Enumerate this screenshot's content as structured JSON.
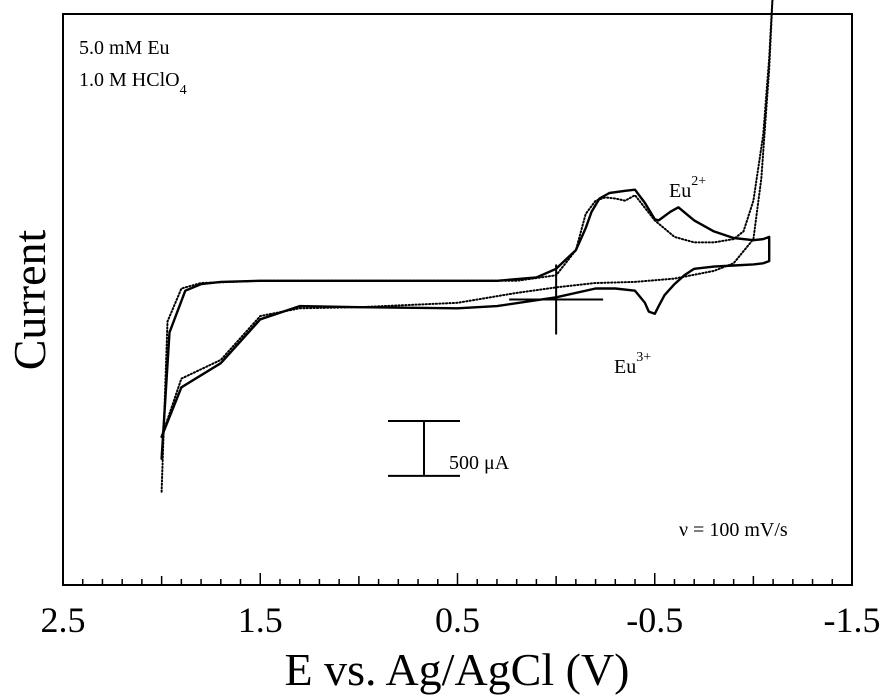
{
  "chart_data": {
    "type": "line",
    "title": "",
    "xlabel": "E vs. Ag/AgCl (V)",
    "ylabel": "Current",
    "x_reversed": true,
    "xlim": [
      2.5,
      -1.5
    ],
    "ylim": [
      -2.6,
      2.6
    ],
    "y_unit": "mA",
    "xticks": [
      "2.5",
      "1.5",
      "0.5",
      "-0.5",
      "-1.5"
    ],
    "xtick_values": [
      2.5,
      1.5,
      0.5,
      -0.5,
      -1.5
    ],
    "minor_tick_step": 0.1,
    "grid": false,
    "legend": "none",
    "annotations": {
      "conc_line1": "5.0 mM Eu",
      "conc_line2_main": "1.0 M HClO",
      "conc_line2_sub": "4",
      "eu2_main": "Eu",
      "eu2_sup": "2+",
      "eu3_main": "Eu",
      "eu3_sup": "3+",
      "scale_bar_label": "500 μA",
      "scale_bar_value_mA": 0.5,
      "scan_rate": "ν = 100 mV/s"
    },
    "series": [
      {
        "style": "solid",
        "x": [
          2.0,
          1.96,
          1.88,
          1.8,
          1.7,
          1.5,
          1.2,
          1.0,
          0.5,
          0.3,
          0.1,
          0.0,
          -0.1,
          -0.15,
          -0.18,
          -0.22,
          -0.27,
          -0.35,
          -0.4,
          -0.45,
          -0.5,
          -0.52,
          -0.58,
          -0.62,
          -0.7,
          -0.8,
          -0.9,
          -1.0,
          -1.05,
          -1.08,
          -1.08,
          -1.05,
          -1.0,
          -0.9,
          -0.8,
          -0.7,
          -0.65,
          -0.6,
          -0.55,
          -0.52,
          -0.5,
          -0.47,
          -0.45,
          -0.4,
          -0.3,
          -0.2,
          0.0,
          0.3,
          0.5,
          1.0,
          1.3,
          1.5,
          1.7,
          1.9,
          2.0
        ],
        "y": [
          -1.45,
          -0.3,
          0.08,
          0.14,
          0.16,
          0.17,
          0.17,
          0.17,
          0.17,
          0.17,
          0.2,
          0.28,
          0.45,
          0.65,
          0.8,
          0.92,
          0.97,
          0.99,
          1.0,
          0.88,
          0.73,
          0.72,
          0.8,
          0.84,
          0.72,
          0.62,
          0.56,
          0.54,
          0.55,
          0.57,
          0.35,
          0.33,
          0.32,
          0.31,
          0.3,
          0.28,
          0.22,
          0.14,
          0.04,
          -0.06,
          -0.13,
          -0.11,
          -0.03,
          0.08,
          0.1,
          0.1,
          0.02,
          -0.06,
          -0.08,
          -0.07,
          -0.06,
          -0.18,
          -0.58,
          -0.8,
          -1.25
        ]
      },
      {
        "style": "dotted",
        "x": [
          2.0,
          1.97,
          1.9,
          1.8,
          1.5,
          1.0,
          0.5,
          0.2,
          0.0,
          -0.1,
          -0.15,
          -0.2,
          -0.25,
          -0.3,
          -0.35,
          -0.4,
          -0.5,
          -0.6,
          -0.7,
          -0.8,
          -0.9,
          -0.95,
          -1.0,
          -1.05,
          -1.08,
          -1.1,
          -1.08,
          -1.04,
          -1.0,
          -0.9,
          -0.8,
          -0.6,
          -0.4,
          -0.2,
          0.0,
          0.2,
          0.5,
          1.0,
          1.3,
          1.5,
          1.7,
          1.9,
          2.0
        ],
        "y": [
          -1.75,
          -0.2,
          0.1,
          0.15,
          0.17,
          0.17,
          0.17,
          0.17,
          0.22,
          0.45,
          0.78,
          0.9,
          0.93,
          0.92,
          0.9,
          0.95,
          0.72,
          0.57,
          0.52,
          0.52,
          0.55,
          0.62,
          0.9,
          1.5,
          2.2,
          2.85,
          2.1,
          1.1,
          0.55,
          0.33,
          0.26,
          0.19,
          0.16,
          0.15,
          0.11,
          0.06,
          -0.03,
          -0.07,
          -0.08,
          -0.15,
          -0.55,
          -0.72,
          -1.25
        ]
      }
    ]
  }
}
